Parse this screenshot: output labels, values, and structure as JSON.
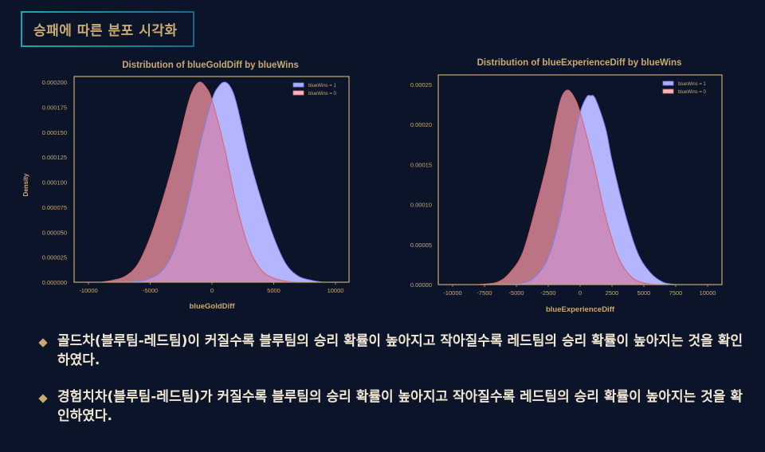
{
  "slide": {
    "title": "승패에 따른 분포 시각화",
    "bullets": [
      "골드차(블루팀-레드팀)이 커질수록 블루팀의 승리 확률이 높아지고 작아질수록 레드팀의 승리 확률이 높아지는 것을 확인하였다.",
      "경험치차(블루팀-레드팀)가 커질수록 블루팀의 승리 확률이 높아지고 작아질수록 레드팀의 승리 확률이 높아지는 것을 확인하였다."
    ]
  },
  "colors": {
    "background": "#0b1428",
    "gold": "#c9aa71",
    "text": "#f0e6d2",
    "blue_fill": "#aab0ff",
    "red_fill": "#ffb3b8"
  },
  "chart_data": [
    {
      "type": "area",
      "title": "Distribution of blueGoldDiff by blueWins",
      "xlabel": "blueGoldDiff",
      "ylabel": "Density",
      "xticks": [
        "-10000",
        "-5000",
        "0",
        "5000",
        "10000"
      ],
      "yticks": [
        "0.000000",
        "0.000025",
        "0.000050",
        "0.000075",
        "0.000100",
        "0.000125",
        "0.000150",
        "0.000175",
        "0.000200"
      ],
      "xlim": [
        -11200,
        11000
      ],
      "ylim": [
        0,
        0.000205
      ],
      "legend": [
        "blueWins = 1",
        "blueWins = 0"
      ],
      "legend_position": "upper right",
      "series": [
        {
          "name": "blueWins = 1",
          "color": "#aab0ff",
          "x": [
            -9000,
            -6000,
            -5000,
            -4000,
            -3000,
            -2000,
            -1000,
            0,
            500,
            1000,
            1500,
            2000,
            3000,
            4000,
            5000,
            6000,
            7000,
            8000,
            9000
          ],
          "y": [
            0,
            1e-06,
            4e-06,
            1.2e-05,
            3.4e-05,
            7.7e-05,
            0.000135,
            0.000182,
            0.000195,
            0.0002,
            0.000195,
            0.000178,
            0.000125,
            8.2e-05,
            4.5e-05,
            1.8e-05,
            6e-06,
            2e-06,
            0
          ]
        },
        {
          "name": "blueWins = 0",
          "color": "#ffb3b8",
          "x": [
            -9000,
            -8000,
            -7000,
            -6000,
            -5000,
            -4000,
            -3000,
            -2000,
            -1500,
            -1000,
            -500,
            0,
            1000,
            2000,
            3000,
            4000,
            5000,
            6000,
            7000
          ],
          "y": [
            0,
            2e-06,
            6e-06,
            1.8e-05,
            4.5e-05,
            8.2e-05,
            0.000125,
            0.000175,
            0.000193,
            0.0002,
            0.000195,
            0.000182,
            0.000135,
            7.7e-05,
            3.4e-05,
            1.2e-05,
            4e-06,
            1e-06,
            0
          ]
        }
      ]
    },
    {
      "type": "area",
      "title": "Distribution of blueExperienceDiff by blueWins",
      "xlabel": "blueExperienceDiff",
      "ylabel": "",
      "xticks": [
        "-10000",
        "-7500",
        "-5000",
        "-2500",
        "0",
        "2500",
        "5000",
        "7500",
        "10000"
      ],
      "yticks": [
        "0.00000",
        "0.00005",
        "0.00010",
        "0.00015",
        "0.00020",
        "0.00025"
      ],
      "xlim": [
        -11200,
        11200
      ],
      "ylim": [
        0,
        0.00026
      ],
      "legend": [
        "blueWins = 1",
        "blueWins = 0"
      ],
      "legend_position": "upper right",
      "series": [
        {
          "name": "blueWins = 1",
          "color": "#aab0ff",
          "x": [
            -6000,
            -4500,
            -3500,
            -2500,
            -1500,
            -500,
            0,
            500,
            800,
            1200,
            2000,
            2500,
            3500,
            4500,
            5500,
            6500,
            7500
          ],
          "y": [
            0,
            2e-06,
            1e-05,
            3.4e-05,
            9e-05,
            0.000178,
            0.000215,
            0.000234,
            0.000236,
            0.000232,
            0.000195,
            0.000155,
            9e-05,
            4e-05,
            1.5e-05,
            3e-06,
            0
          ],
          "peak": 0.000236
        },
        {
          "name": "blueWins = 0",
          "color": "#ffb3b8",
          "x": [
            -8000,
            -6500,
            -5500,
            -4500,
            -3500,
            -2500,
            -2000,
            -1500,
            -1000,
            -500,
            0,
            1000,
            2000,
            3000,
            4000,
            5000,
            6000
          ],
          "y": [
            0,
            3e-06,
            1.5e-05,
            4e-05,
            9.5e-05,
            0.000158,
            0.000198,
            0.000232,
            0.000243,
            0.000235,
            0.000215,
            0.000155,
            8.5e-05,
            3.4e-05,
            1e-05,
            2e-06,
            0
          ],
          "peak": 0.000243
        }
      ]
    }
  ]
}
